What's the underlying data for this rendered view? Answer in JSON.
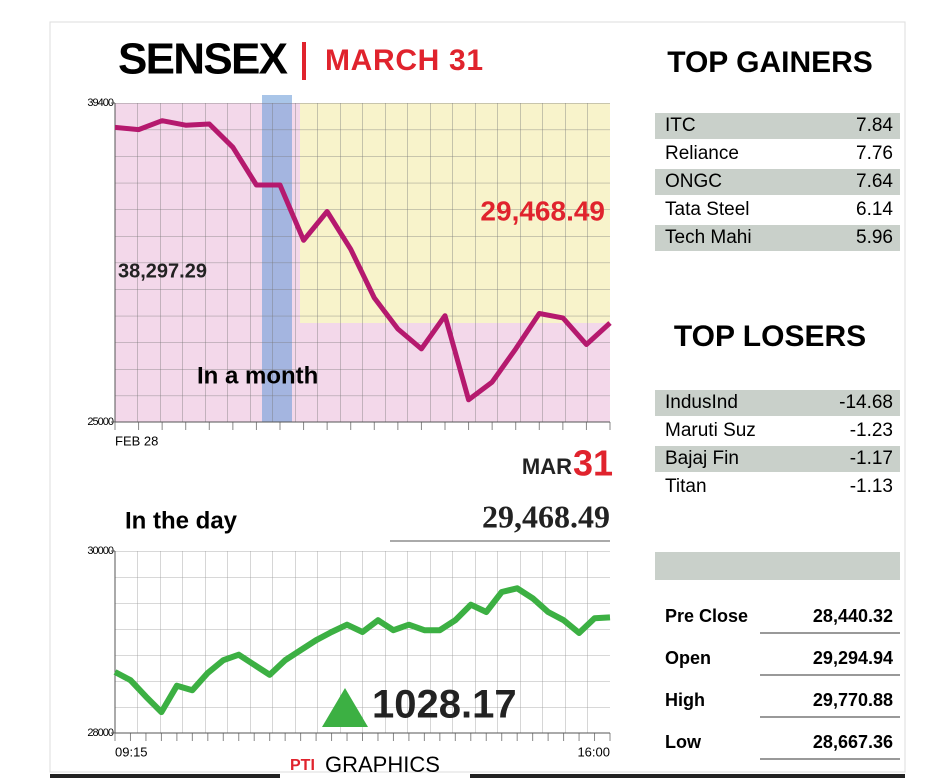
{
  "header": {
    "title": "SENSEX",
    "subtitle": "MARCH 31"
  },
  "chart_data": [
    {
      "type": "line",
      "label": "In a month",
      "categories": [
        "FEB 28",
        null,
        null,
        null,
        null,
        null,
        null,
        null,
        null,
        null,
        null,
        null,
        null,
        null,
        null,
        null,
        null,
        null,
        null,
        null,
        null,
        null
      ],
      "series": [
        {
          "color": "#b5196e",
          "values": [
            38297.29,
            38200,
            38600,
            38400,
            38450,
            37400,
            35700,
            35700,
            33200,
            34500,
            32800,
            30600,
            29200,
            28300,
            29800,
            26000,
            26800,
            28300,
            29900,
            29700,
            28500,
            29468.49
          ]
        }
      ],
      "ylim": [
        25000,
        39400
      ],
      "yticks": [
        25000,
        39400
      ],
      "annotations": [
        "38,297.29",
        "29,468.49",
        "MAR",
        "31"
      ]
    },
    {
      "type": "line",
      "label": "In the day",
      "categories": [
        "09:15",
        null,
        null,
        null,
        null,
        null,
        null,
        null,
        null,
        null,
        null,
        null,
        null,
        null,
        null,
        null,
        null,
        null,
        null,
        null,
        null,
        null,
        null,
        null,
        null,
        null,
        null,
        null,
        null,
        null,
        null,
        null,
        "16:00"
      ],
      "series": [
        {
          "color": "#3cb043",
          "values": [
            28670,
            28580,
            28400,
            28230,
            28520,
            28470,
            28660,
            28800,
            28860,
            28750,
            28640,
            28800,
            28910,
            29020,
            29110,
            29190,
            29110,
            29240,
            29130,
            29190,
            29130,
            29130,
            29240,
            29410,
            29330,
            29550,
            29590,
            29480,
            29330,
            29240,
            29100,
            29260,
            29270
          ]
        }
      ],
      "ylim": [
        28000,
        30000
      ],
      "yticks": [
        28000,
        30000
      ],
      "annotations": [
        "29,468.49",
        "1028.17"
      ]
    }
  ],
  "top_gainers": {
    "title": "TOP GAINERS",
    "rows": [
      [
        "ITC",
        "7.84"
      ],
      [
        "Reliance",
        "7.76"
      ],
      [
        "ONGC",
        "7.64"
      ],
      [
        "Tata Steel",
        "6.14"
      ],
      [
        "Tech Mahi",
        "5.96"
      ]
    ]
  },
  "top_losers": {
    "title": "TOP LOSERS",
    "rows": [
      [
        "IndusInd",
        "-14.68"
      ],
      [
        "Maruti Suz",
        "-1.23"
      ],
      [
        "Bajaj Fin",
        "-1.17"
      ],
      [
        "Titan",
        "-1.13"
      ]
    ]
  },
  "stats": {
    "rows": [
      [
        "Pre Close",
        "28,440.32"
      ],
      [
        "Open",
        "29,294.94"
      ],
      [
        "High",
        "29,770.88"
      ],
      [
        "Low",
        "28,667.36"
      ]
    ]
  },
  "footer": "GRAPHICS"
}
